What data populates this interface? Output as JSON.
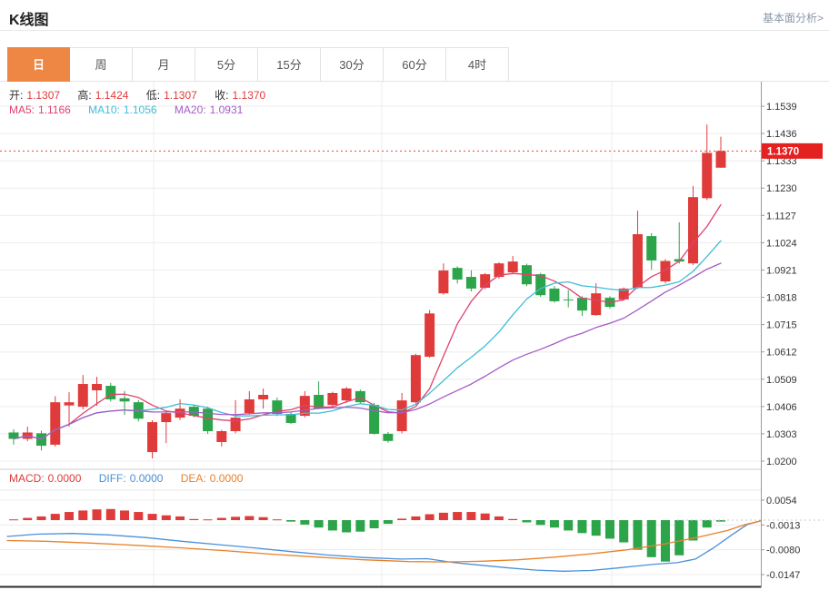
{
  "header": {
    "title": "K线图",
    "analysis_link": "基本面分析>"
  },
  "tabs": [
    {
      "name": "day",
      "label": "日",
      "selected": true
    },
    {
      "name": "week",
      "label": "周",
      "selected": false
    },
    {
      "name": "month",
      "label": "月",
      "selected": false
    },
    {
      "name": "5min",
      "label": "5分",
      "selected": false
    },
    {
      "name": "15min",
      "label": "15分",
      "selected": false
    },
    {
      "name": "30min",
      "label": "30分",
      "selected": false
    },
    {
      "name": "60min",
      "label": "60分",
      "selected": false
    },
    {
      "name": "4hour",
      "label": "4时",
      "selected": false
    }
  ],
  "ohlc": {
    "open_label": "开:",
    "open": "1.1307",
    "high_label": "高:",
    "high": "1.1424",
    "low_label": "低:",
    "low": "1.1307",
    "close_label": "收:",
    "close": "1.1370"
  },
  "ma": {
    "ma5_label": "MA5:",
    "ma5": "1.1166",
    "ma10_label": "MA10:",
    "ma10": "1.1056",
    "ma20_label": "MA20:",
    "ma20": "1.0931"
  },
  "macd": {
    "macd_label": "MACD:",
    "macd": "0.0000",
    "diff_label": "DIFF:",
    "diff": "0.0000",
    "dea_label": "DEA:",
    "dea": "0.0000"
  },
  "price_badge": "1.1370",
  "colors": {
    "up": "#e03b3b",
    "down": "#2ca44a",
    "ma5": "#e0426e",
    "ma10": "#3fbdd6",
    "ma20": "#a45cc5",
    "diff": "#4a90d9",
    "dea": "#e8822a",
    "badge": "#e42020",
    "tab_active": "#ee8743",
    "dotted_price": "#f04040",
    "grid": "#ececec",
    "axis": "#999999",
    "label": "#333333"
  },
  "chart_data": {
    "type": "candlestick",
    "title": "K线图 (daily K-line with MA5/MA10/MA20 and MACD)",
    "price_axis": {
      "max": 1.1539,
      "min": 1.02,
      "labels": [
        "1.1539",
        "1.1436",
        "1.1333",
        "1.1230",
        "1.1127",
        "1.1024",
        "1.0921",
        "1.0818",
        "1.0715",
        "1.0612",
        "1.0509",
        "1.0406",
        "1.0303",
        "1.0200"
      ]
    },
    "macd_axis": {
      "max": 0.0054,
      "min": -0.0147,
      "labels": [
        "0.0054",
        "-0.0013",
        "-0.0080",
        "-0.0147"
      ]
    },
    "current_price": 1.137,
    "ma_periods": [
      5,
      10,
      20
    ],
    "candles": [
      [
        1.0308,
        1.032,
        1.0262,
        1.0284
      ],
      [
        1.0284,
        1.033,
        1.0275,
        1.0308
      ],
      [
        1.0305,
        1.0315,
        1.024,
        1.0258
      ],
      [
        1.0262,
        1.0445,
        1.0255,
        1.0422
      ],
      [
        1.041,
        1.046,
        1.033,
        1.0422
      ],
      [
        1.0405,
        1.0525,
        1.0395,
        1.0491
      ],
      [
        1.0467,
        1.0518,
        1.0409,
        1.0491
      ],
      [
        1.0484,
        1.0495,
        1.0425,
        1.0433
      ],
      [
        1.0437,
        1.0465,
        1.0375,
        1.0425
      ],
      [
        1.0422,
        1.043,
        1.035,
        1.036
      ],
      [
        1.0234,
        1.0354,
        1.021,
        1.0347
      ],
      [
        1.0347,
        1.039,
        1.0268,
        1.0381
      ],
      [
        1.0364,
        1.0433,
        1.0355,
        1.0398
      ],
      [
        1.0405,
        1.0412,
        1.0365,
        1.0371
      ],
      [
        1.0398,
        1.0405,
        1.0303,
        1.0313
      ],
      [
        1.0272,
        1.0318,
        1.0255,
        1.0313
      ],
      [
        1.0313,
        1.043,
        1.0305,
        1.0364
      ],
      [
        1.0381,
        1.0464,
        1.0375,
        1.0433
      ],
      [
        1.0433,
        1.0474,
        1.0398,
        1.045
      ],
      [
        1.0429,
        1.044,
        1.037,
        1.0378
      ],
      [
        1.0378,
        1.0385,
        1.034,
        1.0344
      ],
      [
        1.0371,
        1.0464,
        1.0365,
        1.0446
      ],
      [
        1.045,
        1.0501,
        1.0395,
        1.0398
      ],
      [
        1.0412,
        1.0462,
        1.0405,
        1.0457
      ],
      [
        1.0429,
        1.048,
        1.042,
        1.0474
      ],
      [
        1.0464,
        1.047,
        1.0415,
        1.0422
      ],
      [
        1.0412,
        1.042,
        1.03,
        1.0303
      ],
      [
        1.0303,
        1.031,
        1.027,
        1.0276
      ],
      [
        1.0313,
        1.0457,
        1.0305,
        1.0429
      ],
      [
        1.0422,
        1.0605,
        1.0418,
        1.06
      ],
      [
        1.0594,
        1.077,
        1.059,
        1.0757
      ],
      [
        1.0833,
        1.0946,
        1.0828,
        1.0919
      ],
      [
        1.0929,
        1.0935,
        1.087,
        1.0885
      ],
      [
        1.0895,
        1.092,
        1.084,
        1.0851
      ],
      [
        1.0854,
        1.091,
        1.0848,
        1.0905
      ],
      [
        1.0895,
        1.095,
        1.0888,
        1.0946
      ],
      [
        1.0912,
        1.0974,
        1.0905,
        1.0953
      ],
      [
        1.0939,
        1.0945,
        1.086,
        1.0867
      ],
      [
        1.0905,
        1.091,
        1.082,
        1.0826
      ],
      [
        1.0851,
        1.086,
        1.0798,
        1.0803
      ],
      [
        1.081,
        1.0845,
        1.078,
        1.0808
      ],
      [
        1.0816,
        1.0822,
        1.0748,
        1.0768
      ],
      [
        1.0751,
        1.0871,
        1.0748,
        1.0833
      ],
      [
        1.0816,
        1.0822,
        1.0775,
        1.0782
      ],
      [
        1.081,
        1.0855,
        1.0805,
        1.0851
      ],
      [
        1.0854,
        1.1145,
        1.085,
        1.1056
      ],
      [
        1.1049,
        1.106,
        1.0922,
        1.0957
      ],
      [
        1.0878,
        1.0962,
        1.087,
        1.0955
      ],
      [
        1.0962,
        1.1101,
        1.0945,
        1.0953
      ],
      [
        1.0946,
        1.1238,
        1.094,
        1.1196
      ],
      [
        1.1192,
        1.147,
        1.1185,
        1.1363
      ],
      [
        1.1307,
        1.1424,
        1.1307,
        1.137
      ]
    ],
    "macd_histogram": [
      0.0002,
      0.0006,
      0.001,
      0.0017,
      0.0022,
      0.0026,
      0.0029,
      0.003,
      0.0026,
      0.0022,
      0.0017,
      0.0013,
      0.001,
      0.0003,
      0.0002,
      0.0006,
      0.0009,
      0.0011,
      0.0008,
      0.0002,
      -0.0004,
      -0.0012,
      -0.002,
      -0.0028,
      -0.0033,
      -0.0031,
      -0.0022,
      -0.001,
      0.0004,
      0.001,
      0.0016,
      0.002,
      0.0022,
      0.0022,
      0.0018,
      0.001,
      0.0003,
      -0.0006,
      -0.0013,
      -0.002,
      -0.0028,
      -0.0035,
      -0.0042,
      -0.005,
      -0.006,
      -0.008,
      -0.01,
      -0.0112,
      -0.0095,
      -0.0055,
      -0.002,
      -0.0004
    ],
    "diff_line": [
      [
        8,
        -0.0044
      ],
      [
        40,
        -0.0038
      ],
      [
        80,
        -0.0036
      ],
      [
        120,
        -0.004
      ],
      [
        160,
        -0.0047
      ],
      [
        200,
        -0.0057
      ],
      [
        240,
        -0.0066
      ],
      [
        280,
        -0.0075
      ],
      [
        320,
        -0.0085
      ],
      [
        360,
        -0.0094
      ],
      [
        400,
        -0.0101
      ],
      [
        440,
        -0.0105
      ],
      [
        470,
        -0.0104
      ],
      [
        500,
        -0.0115
      ],
      [
        530,
        -0.0122
      ],
      [
        560,
        -0.0129
      ],
      [
        590,
        -0.0135
      ],
      [
        620,
        -0.0138
      ],
      [
        650,
        -0.0136
      ],
      [
        680,
        -0.0129
      ],
      [
        700,
        -0.0124
      ],
      [
        720,
        -0.0119
      ],
      [
        745,
        -0.0115
      ],
      [
        765,
        -0.0105
      ],
      [
        785,
        -0.0075
      ],
      [
        805,
        -0.004
      ],
      [
        822,
        -0.0012
      ],
      [
        837,
        -0.0002
      ]
    ],
    "dea_line": [
      [
        8,
        -0.0055
      ],
      [
        50,
        -0.0057
      ],
      [
        100,
        -0.0062
      ],
      [
        150,
        -0.0068
      ],
      [
        200,
        -0.0075
      ],
      [
        250,
        -0.0083
      ],
      [
        300,
        -0.0092
      ],
      [
        350,
        -0.01
      ],
      [
        400,
        -0.0107
      ],
      [
        450,
        -0.0112
      ],
      [
        490,
        -0.0113
      ],
      [
        530,
        -0.0111
      ],
      [
        570,
        -0.0107
      ],
      [
        610,
        -0.01
      ],
      [
        650,
        -0.0091
      ],
      [
        690,
        -0.008
      ],
      [
        730,
        -0.0065
      ],
      [
        770,
        -0.0045
      ],
      [
        800,
        -0.0028
      ],
      [
        820,
        -0.0012
      ],
      [
        837,
        -0.0002
      ]
    ]
  }
}
